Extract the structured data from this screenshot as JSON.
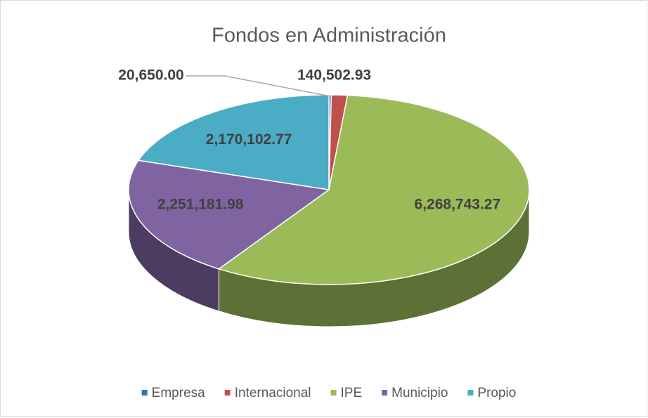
{
  "chart_data": {
    "type": "pie",
    "title": "Fondos en Administración",
    "categories": [
      "Empresa",
      "Internacional",
      "IPE",
      "Municipio",
      "Propio"
    ],
    "values": [
      20650.0,
      140502.93,
      6268743.27,
      2251181.98,
      2170102.77
    ],
    "value_labels": [
      "20,650.00",
      "140,502.93",
      "6,268,743.27",
      "2,251,181.98",
      "2,170,102.77"
    ],
    "colors": [
      "#2e75b6",
      "#c0504d",
      "#9bbb59",
      "#8064a2",
      "#4bacc6"
    ],
    "legend": "bottom"
  }
}
